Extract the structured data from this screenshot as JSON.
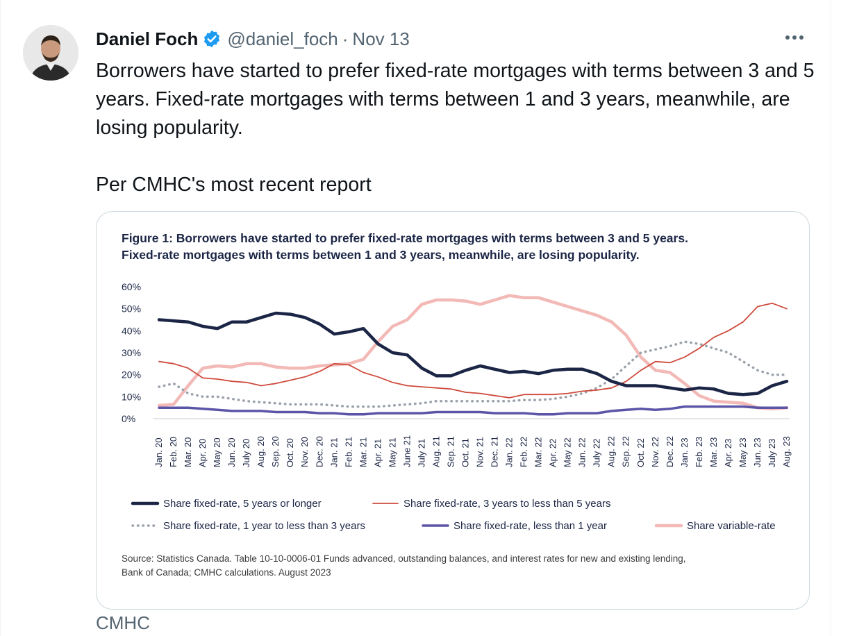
{
  "tweet": {
    "author_name": "Daniel Foch",
    "handle": "@daniel_foch",
    "separator": "·",
    "date": "Nov 13",
    "text_line1": "Borrowers have started to prefer fixed-rate mortgages with terms between 3 and 5 years. Fixed-rate mortgages with terms between 1 and 3 years, meanwhile, are losing popularity.",
    "text_line2": "Per CMHC's most recent report",
    "card_source": "CMHC"
  },
  "colors": {
    "navy": "#1b2545",
    "red": "#cf4a3c",
    "gray_dotted": "#9aa1ab",
    "purple": "#5b55a8",
    "pink": "#f2b9b6",
    "verified": "#1d9bf0"
  },
  "chart_data": {
    "type": "line",
    "title": "Figure 1: Borrowers have started to prefer fixed-rate mortgages with terms between 3 and 5 years.",
    "title_line2": "Fixed-rate mortgages with terms between 1 and 3 years, meanwhile, are losing popularity.",
    "xlabel": "",
    "ylabel": "",
    "ylim": [
      0,
      60
    ],
    "y_ticks": [
      "0%",
      "10%",
      "20%",
      "30%",
      "40%",
      "50%",
      "60%"
    ],
    "categories": [
      "Jan. 20",
      "Feb. 20",
      "Mar. 20",
      "Apr. 20",
      "May 20",
      "Jun. 20",
      "July 20",
      "Aug. 20",
      "Sep. 20",
      "Oct. 20",
      "Nov. 20",
      "Dec. 20",
      "Jan. 21",
      "Feb. 21",
      "Mar. 21",
      "Apr. 21",
      "May 21",
      "June 21",
      "July 21",
      "Aug. 21",
      "Sep. 21",
      "Oct. 21",
      "Nov. 21",
      "Dec. 21",
      "Jan. 22",
      "Feb. 22",
      "Mar. 22",
      "Apr. 22",
      "May 22",
      "Jun. 22",
      "July 22",
      "Aug. 22",
      "Sep. 22",
      "Oct. 22",
      "Nov. 22",
      "Dec. 22",
      "Jan. 23",
      "Feb. 23",
      "Mar. 23",
      "Apr. 23",
      "May 23",
      "Jun. 23",
      "July 23",
      "Aug. 23"
    ],
    "series": [
      {
        "name": "Share fixed-rate, 5 years or longer",
        "color": "#1b2545",
        "style": "solid-thick",
        "values": [
          45,
          44.5,
          44,
          42,
          41,
          44,
          44,
          46,
          48,
          47.5,
          46,
          43,
          38.5,
          39.5,
          41,
          34,
          30,
          29,
          23,
          19.5,
          19.5,
          22,
          24,
          22.5,
          21,
          21.5,
          20.5,
          22,
          22.5,
          22.5,
          20.5,
          17,
          15,
          15,
          15,
          14,
          13,
          14,
          13.5,
          11.5,
          11,
          11.5,
          15,
          17
        ]
      },
      {
        "name": "Share fixed-rate, 3 years to less than 5 years",
        "color": "#cf4a3c",
        "style": "solid-thin",
        "values": [
          26,
          25,
          23,
          18.5,
          18,
          17,
          16.5,
          15,
          16,
          17.5,
          19,
          21.5,
          25,
          24.5,
          21,
          19,
          16.5,
          15,
          14.5,
          14,
          13.5,
          12,
          11.5,
          10.5,
          9.5,
          11,
          11,
          11,
          11.5,
          12.5,
          13,
          14,
          17,
          22,
          26,
          25.5,
          28,
          32,
          37,
          40,
          44,
          51,
          52.5,
          50
        ]
      },
      {
        "name": "Share fixed-rate, 1 year to less than 3 years",
        "color": "#9aa1ab",
        "style": "dotted",
        "values": [
          14.5,
          16,
          11.5,
          10,
          10,
          9,
          8,
          7.5,
          7,
          6.5,
          6.5,
          6.5,
          6,
          5.5,
          5.5,
          5.5,
          6,
          6.5,
          7,
          8,
          8,
          8,
          8,
          8,
          8,
          8.5,
          8.5,
          9,
          10,
          11.5,
          14,
          18,
          24,
          30,
          31.5,
          33,
          35,
          34,
          32,
          30,
          26,
          22,
          20,
          20
        ]
      },
      {
        "name": "Share fixed-rate, less than 1 year",
        "color": "#5b55a8",
        "style": "solid-medium",
        "values": [
          5,
          5,
          5,
          4.5,
          4,
          3.5,
          3.5,
          3.5,
          3,
          3,
          3,
          2.5,
          2.5,
          2,
          2,
          2.5,
          2.5,
          2.5,
          2.5,
          3,
          3,
          3,
          3,
          2.5,
          2.5,
          2.5,
          2,
          2,
          2.5,
          2.5,
          2.5,
          3.5,
          4,
          4.5,
          4,
          4.5,
          5.5,
          5.5,
          5.5,
          5.5,
          5.5,
          5,
          5,
          5
        ]
      },
      {
        "name": "Share variable-rate",
        "color": "#f2b9b6",
        "style": "solid-thick",
        "values": [
          6,
          6.5,
          15,
          23,
          24,
          23.5,
          25,
          25,
          23.5,
          23,
          23,
          24,
          24.5,
          25,
          27,
          35,
          42,
          45,
          52,
          54,
          54,
          53.5,
          52,
          54,
          56,
          55,
          55,
          53,
          51,
          49,
          47,
          44,
          38,
          28,
          22,
          21,
          16,
          10.5,
          8,
          7.5,
          7,
          5,
          4.5,
          5
        ]
      }
    ],
    "legend": {
      "placement": "bottom"
    },
    "source_line1": "Source: Statistics Canada. Table 10-10-0006-01 Funds advanced, outstanding balances, and interest rates for new and existing lending,",
    "source_line2": "Bank of Canada; CMHC calculations. August 2023"
  }
}
